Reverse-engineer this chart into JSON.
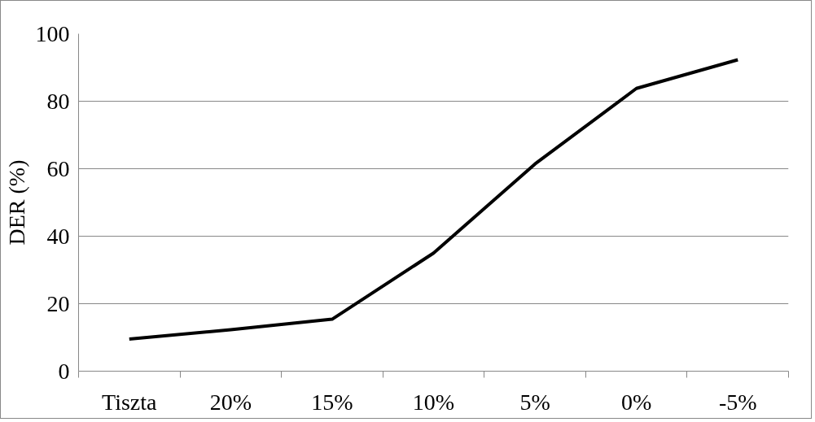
{
  "chart_data": {
    "type": "line",
    "ylabel": "DER (%)",
    "categories": [
      "Tiszta",
      "20%",
      "15%",
      "10%",
      "5%",
      "0%",
      "-5%"
    ],
    "series": [
      {
        "color": "#000000",
        "values": [
          9.5,
          12.3,
          15.4,
          35,
          61.4,
          83.8,
          92.3
        ]
      }
    ],
    "ylim": [
      0,
      100
    ],
    "yticks": [
      0,
      20,
      40,
      60,
      80,
      100
    ],
    "grid": "y",
    "marker": "none",
    "line_style": "solid"
  }
}
